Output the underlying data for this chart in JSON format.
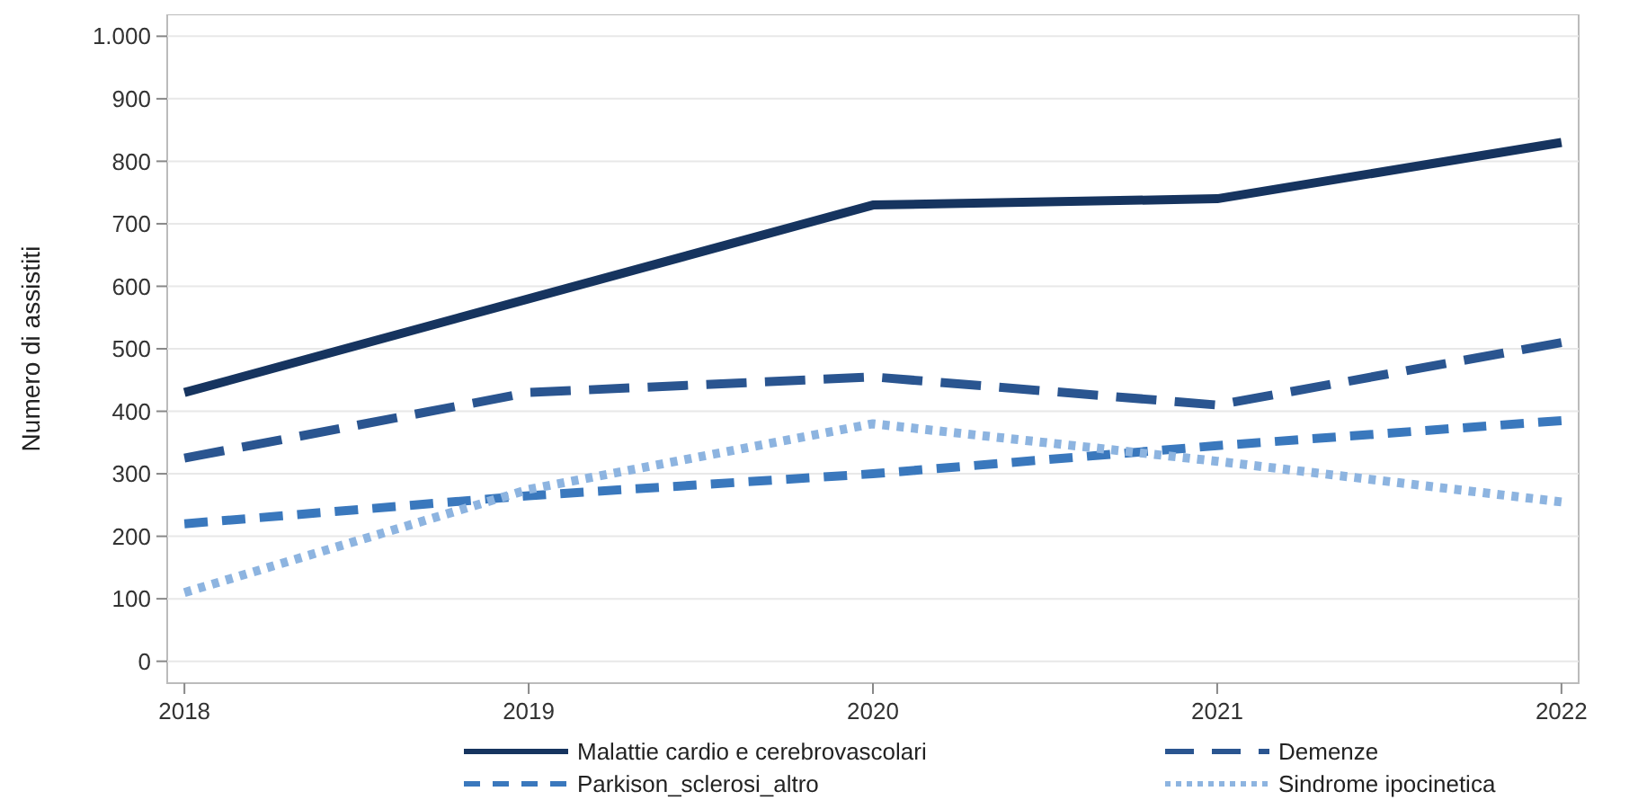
{
  "chart_data": {
    "type": "line",
    "ylabel": "Numero di assistiti",
    "x": [
      2018,
      2019,
      2020,
      2021,
      2022
    ],
    "xlim": [
      2017.95,
      2022.05
    ],
    "xticks": [
      2018,
      2019,
      2020,
      2021,
      2022
    ],
    "ylim": [
      -35,
      1035
    ],
    "yticks": [
      0,
      100,
      200,
      300,
      400,
      500,
      600,
      700,
      800,
      900,
      {
        "value": 1000,
        "label": "1.000"
      }
    ],
    "grid": "y",
    "legend": "bottom",
    "series": [
      {
        "name": "Malattie cardio e cerebrovascolari",
        "color": "#16345f",
        "line_style": "solid",
        "values": [
          430,
          580,
          730,
          740,
          830
        ]
      },
      {
        "name": "Demenze",
        "color": "#2a5590",
        "line_style": "longdash",
        "values": [
          325,
          430,
          455,
          410,
          510
        ]
      },
      {
        "name": "Parkison_sclerosi_altro",
        "color": "#3a78bd",
        "line_style": "dashed",
        "values": [
          220,
          265,
          300,
          345,
          385
        ]
      },
      {
        "name": "Sindrome ipocinetica",
        "color": "#8db4e0",
        "line_style": "dotted",
        "values": [
          110,
          275,
          380,
          320,
          255
        ]
      }
    ]
  }
}
